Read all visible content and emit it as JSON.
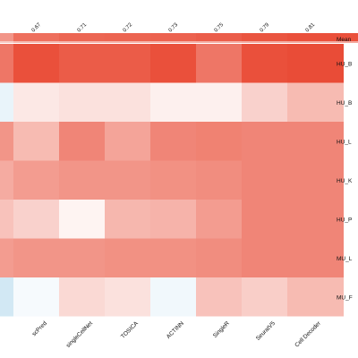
{
  "chart_data": {
    "type": "heatmap",
    "title": "",
    "columns": [
      "scPred",
      "singleCellNet",
      "TOSICA",
      "ACTINN",
      "SingleR",
      "SeuratV5",
      "Cell Decoder"
    ],
    "rows": [
      "HU_B",
      "HU_B",
      "HU_L",
      "HU_K",
      "HU_P",
      "MU_L",
      "MU_F"
    ],
    "mean_row_label": "Mean",
    "mean_values": [
      "0.67",
      "0.71",
      "0.72",
      "0.73",
      "0.75",
      "0.79",
      "0.81"
    ],
    "mean_numeric": [
      0.67,
      0.71,
      0.72,
      0.73,
      0.75,
      0.79,
      0.81
    ],
    "left_partial_column": [
      0.86,
      0.45,
      0.78,
      0.72,
      0.66,
      0.76,
      0.4
    ],
    "values": [
      [
        0.96,
        0.93,
        0.93,
        0.96,
        0.86,
        0.96,
        0.97
      ],
      [
        0.56,
        0.58,
        0.58,
        0.54,
        0.54,
        0.62,
        0.68
      ],
      [
        0.68,
        0.82,
        0.74,
        0.82,
        0.83,
        0.82,
        0.82
      ],
      [
        0.76,
        0.78,
        0.78,
        0.79,
        0.8,
        0.82,
        0.82
      ],
      [
        0.62,
        0.53,
        0.69,
        0.7,
        0.76,
        0.82,
        0.82
      ],
      [
        0.78,
        0.78,
        0.79,
        0.79,
        0.8,
        0.82,
        0.82
      ],
      [
        0.48,
        0.6,
        0.58,
        0.47,
        0.66,
        0.63,
        0.68
      ]
    ],
    "color_scale": {
      "low": "#d2e8f4",
      "mid": "#ffffff",
      "high": "#e8412a",
      "domain": [
        0.4,
        0.5,
        1.0
      ]
    },
    "grid": false,
    "legend": "none"
  }
}
